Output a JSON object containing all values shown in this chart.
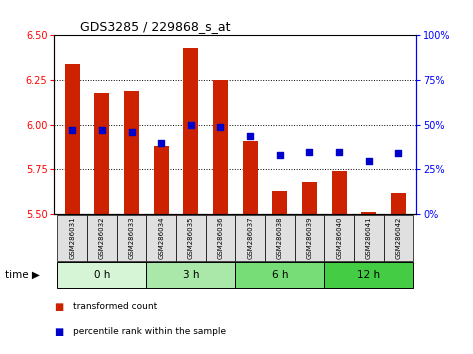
{
  "title": "GDS3285 / 229868_s_at",
  "samples": [
    "GSM286031",
    "GSM286032",
    "GSM286033",
    "GSM286034",
    "GSM286035",
    "GSM286036",
    "GSM286037",
    "GSM286038",
    "GSM286039",
    "GSM286040",
    "GSM286041",
    "GSM286042"
  ],
  "red_values": [
    6.34,
    6.18,
    6.19,
    5.88,
    6.43,
    6.25,
    5.91,
    5.63,
    5.68,
    5.74,
    5.51,
    5.62
  ],
  "blue_values": [
    47,
    47,
    46,
    40,
    50,
    49,
    44,
    33,
    35,
    35,
    30,
    34
  ],
  "groups": [
    {
      "label": "0 h",
      "start": 0,
      "end": 3,
      "color": "#d6f5d6"
    },
    {
      "label": "3 h",
      "start": 3,
      "end": 6,
      "color": "#aae8aa"
    },
    {
      "label": "6 h",
      "start": 6,
      "end": 9,
      "color": "#77dd77"
    },
    {
      "label": "12 h",
      "start": 9,
      "end": 12,
      "color": "#44cc44"
    }
  ],
  "ylim_left": [
    5.5,
    6.5
  ],
  "ylim_right": [
    0,
    100
  ],
  "yticks_left": [
    5.5,
    5.75,
    6.0,
    6.25,
    6.5
  ],
  "yticks_right": [
    0,
    25,
    50,
    75,
    100
  ],
  "bar_color": "#cc2200",
  "dot_color": "#0000cc",
  "bar_width": 0.5,
  "dot_size": 18,
  "grid_yticks": [
    5.75,
    6.0,
    6.25
  ],
  "legend_red": "transformed count",
  "legend_blue": "percentile rank within the sample",
  "time_label": "time"
}
